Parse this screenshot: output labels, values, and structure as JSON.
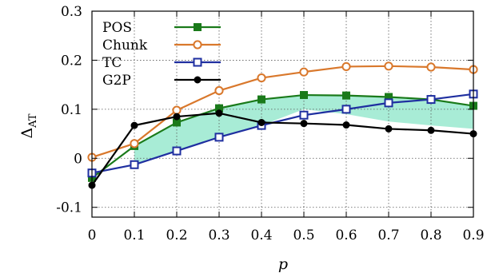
{
  "chart_data": {
    "type": "line",
    "title": "",
    "xlabel": "p",
    "ylabel_main": "Δ",
    "ylabel_sub": "AT",
    "xlim": [
      0,
      0.9
    ],
    "ylim": [
      -0.12,
      0.3
    ],
    "xticks": [
      0,
      0.1,
      0.2,
      0.3,
      0.4,
      0.5,
      0.6,
      0.7,
      0.8,
      0.9
    ],
    "xtick_labels": [
      "0",
      "0.1",
      "0.2",
      "0.3",
      "0.4",
      "0.5",
      "0.6",
      "0.7",
      "0.8",
      "0.9"
    ],
    "yticks": [
      -0.1,
      0,
      0.1,
      0.2,
      0.3
    ],
    "ytick_labels": [
      "-0.1",
      "0",
      "0.1",
      "0.2",
      "0.3"
    ],
    "grid": true,
    "legend_position": "top-left",
    "x": [
      0,
      0.1,
      0.2,
      0.3,
      0.4,
      0.5,
      0.6,
      0.7,
      0.8,
      0.9
    ],
    "series": [
      {
        "name": "POS",
        "color": "#1a7a1a",
        "marker": "filled-square",
        "values": [
          -0.04,
          0.025,
          0.073,
          0.102,
          0.12,
          0.129,
          0.128,
          0.125,
          0.12,
          0.107
        ]
      },
      {
        "name": "Chunk",
        "color": "#d9782c",
        "marker": "open-circle",
        "values": [
          0.002,
          0.03,
          0.098,
          0.138,
          0.164,
          0.176,
          0.187,
          0.188,
          0.186,
          0.181
        ]
      },
      {
        "name": "TC",
        "color": "#1f2fa0",
        "marker": "open-square",
        "values": [
          -0.03,
          -0.013,
          0.015,
          0.043,
          0.067,
          0.088,
          0.1,
          0.113,
          0.12,
          0.131
        ]
      },
      {
        "name": "G2P",
        "color": "#000000",
        "marker": "filled-circle",
        "values": [
          -0.055,
          0.067,
          0.085,
          0.092,
          0.073,
          0.071,
          0.068,
          0.06,
          0.057,
          0.05
        ]
      }
    ],
    "shaded_band": {
      "color": "#a8ecd6",
      "x": [
        0.1,
        0.2,
        0.3,
        0.4,
        0.5,
        0.6,
        0.7,
        0.8,
        0.9
      ],
      "upper": [
        0.025,
        0.073,
        0.102,
        0.12,
        0.129,
        0.128,
        0.125,
        0.12,
        0.107
      ],
      "lower": [
        -0.013,
        0.015,
        0.043,
        0.067,
        0.1,
        0.09,
        0.075,
        0.067,
        0.06
      ]
    }
  }
}
